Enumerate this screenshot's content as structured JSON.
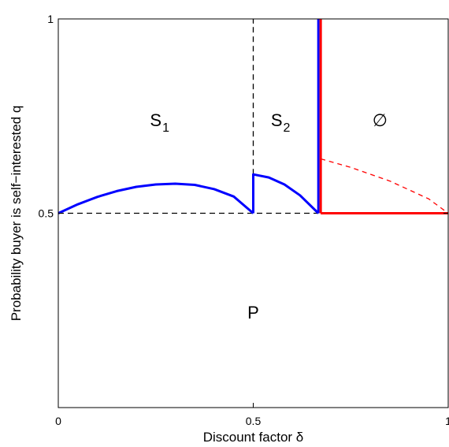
{
  "chart_data": {
    "type": "line",
    "xlabel": "Discount factor δ",
    "ylabel": "Probability buyer is self−interested q",
    "xlim": [
      0,
      1
    ],
    "ylim": [
      0,
      1
    ],
    "xticks": [
      0,
      0.5,
      1
    ],
    "xtick_labels": [
      "0",
      "0.5",
      "1"
    ],
    "yticks": [
      0.5,
      1
    ],
    "ytick_labels": [
      "0.5",
      "1"
    ],
    "grid": false,
    "legend": "none",
    "series": [
      {
        "style": "blue-solid",
        "color": "#0000ff",
        "x": [
          0,
          0.05,
          0.1,
          0.15,
          0.2,
          0.25,
          0.3,
          0.35,
          0.4,
          0.45,
          0.5
        ],
        "y": [
          0.5,
          0.523,
          0.542,
          0.557,
          0.568,
          0.574,
          0.576,
          0.573,
          0.562,
          0.543,
          0.5
        ]
      },
      {
        "style": "blue-solid",
        "color": "#0000ff",
        "x": [
          0.5,
          0.5,
          0.54,
          0.58,
          0.62,
          0.667
        ],
        "y": [
          0.5,
          0.6,
          0.592,
          0.574,
          0.546,
          0.5
        ]
      },
      {
        "style": "blue-solid",
        "color": "#0000ff",
        "x": [
          0.667,
          0.667
        ],
        "y": [
          0.5,
          1
        ]
      },
      {
        "style": "red-solid",
        "color": "#ff0000",
        "x": [
          0.673,
          0.673
        ],
        "y": [
          0.5,
          1
        ]
      },
      {
        "style": "red-solid",
        "color": "#ff0000",
        "x": [
          0.673,
          1
        ],
        "y": [
          0.5,
          0.5
        ]
      },
      {
        "style": "red-dashed",
        "color": "#ff0000",
        "x": [
          0.673,
          0.75,
          0.85,
          0.95,
          1
        ],
        "y": [
          0.64,
          0.618,
          0.583,
          0.537,
          0.5
        ]
      },
      {
        "style": "black-dashed",
        "color": "#000000",
        "x": [
          0,
          0.667
        ],
        "y": [
          0.5,
          0.5
        ]
      },
      {
        "style": "black-dashed",
        "color": "#000000",
        "x": [
          0.5,
          0.5
        ],
        "y": [
          0.6,
          1
        ]
      }
    ],
    "annotations": [
      {
        "main": "S",
        "sub": "1",
        "x": 0.26,
        "y": 0.74
      },
      {
        "main": "S",
        "sub": "2",
        "x": 0.57,
        "y": 0.74
      },
      {
        "main": "∅",
        "x": 0.825,
        "y": 0.74
      },
      {
        "main": "P",
        "x": 0.5,
        "y": 0.245
      }
    ]
  }
}
